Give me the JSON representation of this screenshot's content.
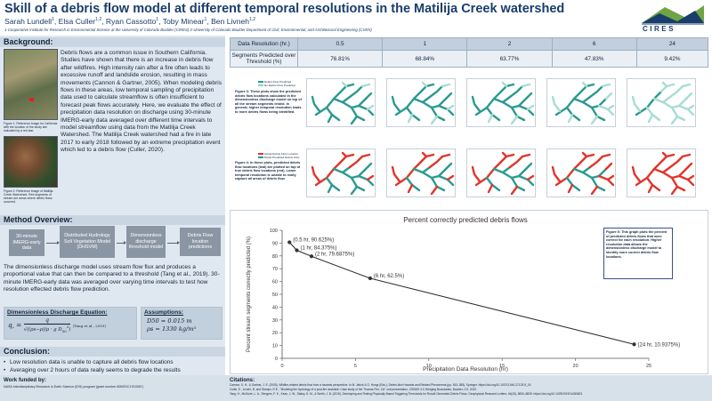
{
  "header": {
    "title": "Skill of a debris flow model at different temporal resolutions in the Matilija Creek watershed",
    "authors": [
      {
        "name": "Sarah Lundell",
        "aff": "1"
      },
      {
        "name": "Elsa Culler",
        "aff": "1,2"
      },
      {
        "name": "Ryan Cassotto",
        "aff": "1"
      },
      {
        "name": "Toby Minear",
        "aff": "1"
      },
      {
        "name": "Ben Livneh",
        "aff": "1,2"
      }
    ],
    "affiliations": "1-Cooperative Institute for Research in Environmental Science at the University of Colorado Boulder (CIRES)  2-University of Colorado Boulder Department of Civil, Environmental, and Architectural Engineering (CVEN)",
    "logo_text": "CIRES",
    "logo_color": "#1a3d6b",
    "logo_accent": "#6fa544"
  },
  "background": {
    "heading": "Background:",
    "text": "Debris flows are a common issue in Southern California. Studies have shown that there is an increase in debris flow after wildfires. High intensity rain after a fire often leads to excessive runoff and landslide erosion, resulting in mass movements (Cannon & Gartner, 2005). When modeling debris flows in these areas, low temporal sampling of precipitation data used to calculate streamflow is often insufficient to forecast peak flows accurately. Here, we evaluate the effect of precipitation data resolution on discharge using 30-minute IMERG-early data averaged over different time intervals to model streamflow using data from the Matilija Creek Watershed. The Matilija Creek watershed had a fire in late 2017 to early 2018 followed by an extreme precipitation event which led to a debris flow (Culler, 2020).",
    "fig1_caption": "Figure 1: Reference image for California with the location of the study site indicated by a red star.",
    "fig2_caption": "Figure 2: Reference image of Matilija Creek Watershed. Red segments of stream are areas where debris flows occurred."
  },
  "method": {
    "heading": "Method Overview:",
    "flow_boxes": [
      "30-minute IMERG-early data",
      "Distributed Hydrology Soil Vegetation Model (DHSVM)",
      "Dimensionless discharge threshold model",
      "Debris Flow location predictions"
    ],
    "text": "The dimensionless discharge model uses stream flow flux and produces a proportional value that can then be compared to a threshold (Tang et al., 2019). 30-minute IMERG-early data was averaged over varying time intervals to test how resolution effected debris flow prediction.",
    "eq_title": "Dimensionless Discharge Equation:",
    "eq_ref": "(Tang et al., 2019)",
    "ass_title": "Assumptions:",
    "ass_1": "D50 = 0.015 m",
    "ass_2": "ρs = 1330 kg/m³"
  },
  "conclusion": {
    "heading": "Conclusion:",
    "bullets": [
      "Low resolution data is unable to capture all debris flow locations",
      "Averaging over 2 hours of data really seems to degrade the results"
    ]
  },
  "footer": {
    "funding_title": "Work funded by:",
    "funding_text": "NASA Interdisciplinary Research in Earth Science (IDS) program (grant number 80NSSC17K0057)",
    "citations_title": "Citations:",
    "citations": [
      "Cannon, S. H., & Gartner, J. E. (2005). Wildfire-related debris flow from a hazards perspective. In M. Jakob & O. Hungr (Eds.), Debris-flow Hazards and Related Phenomena (pp. 363–385). Springer. https://doi.org/10.1007/3-540-27129-5_15",
      "Culler, E., Livneh, B. and Stamps, R.E., \"Modeling the hydrology of a post-fire landslide: Case study of the Thomas Fire, CA\" oral presentation, CSDMS 3.0, Bridging Boundaries, Boulder, CO, 2020.",
      "Tang, H., McGuire, L. A., Rengers, F. K., Kean, J. W., Staley, D. M., & Smith, J. B. (2019). Developing and Testing Physically Based Triggering Thresholds for Runoff-Generated Debris Flows. Geophysical Research Letters, 46(15), 8830–8839. https://doi.org/10.1029/2019GL083623"
    ]
  },
  "table": {
    "header_label": "Data Resolution (hr.)",
    "row_label": "Segments Predicted over Threshold (%)",
    "resolutions": [
      "0.5",
      "1",
      "2",
      "6",
      "24"
    ],
    "percentages": [
      "76.81%",
      "68.84%",
      "63.77%",
      "47.83%",
      "9.42%"
    ]
  },
  "figures": {
    "fig3_legend": [
      "Debris Flow Predicted",
      "No Debris Flow Predicted"
    ],
    "fig3_caption": "Figure 3: These plots show the predicted debris flow locations calculated in the dimensionless discharge model on top of all the stream segments tested. In general, higher temporal resolution leads to more debris flows being identified.",
    "fig4_legend": [
      "Actual Debris Flow Location",
      "Model Predicted Debris Flow"
    ],
    "fig4_caption": "Figure 4: In these plots, predicted debris flow locations (teal) are plotted on top of true debris flow locations (red). Lower temporal resolution is unable to really capture all areas of debris flow.",
    "fig5_caption": "Figure 5: This graph plots the percent of predicted debris flows that were correct for each resolution. Higher resolution data allows the dimensionless discharge model to identify more correct debris flow locations.",
    "teal": "#2a9a8f",
    "red": "#e0352b"
  },
  "chart_data": {
    "type": "line",
    "title": "Percent correctly predicted debris flows",
    "xlabel": "Precipitation Data Resolution (hr)",
    "ylabel": "Percent stream segments correctly predicted (%)",
    "xlim": [
      0,
      25
    ],
    "ylim": [
      0,
      100
    ],
    "xticks": [
      0,
      5,
      10,
      15,
      20,
      25
    ],
    "yticks": [
      0,
      10,
      20,
      30,
      40,
      50,
      60,
      70,
      80,
      90,
      100
    ],
    "x": [
      0.5,
      1,
      2,
      6,
      24
    ],
    "y": [
      90.625,
      84.375,
      79.6875,
      62.5,
      10.9375
    ],
    "labels": [
      "(0.5 hr, 90.625%)",
      "(1 hr, 84.375%)",
      "(2 hr, 79.6875%)",
      "(6 hr, 62.5%)",
      "(24 hr, 10.9375%)"
    ],
    "line_color": "#333333"
  }
}
